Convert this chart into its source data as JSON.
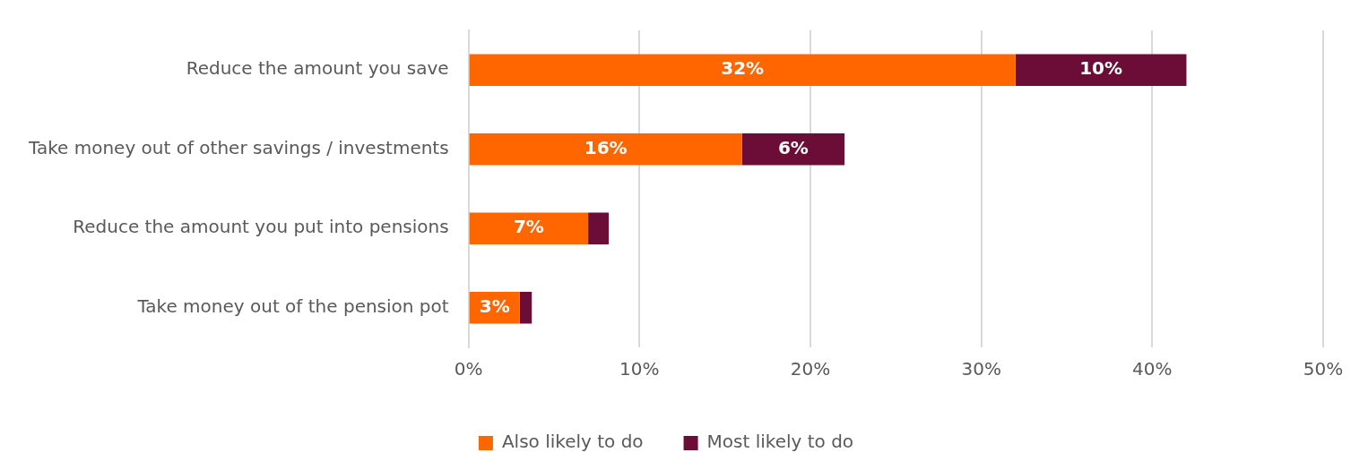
{
  "chart_data": {
    "type": "bar",
    "orientation": "horizontal",
    "stacked": true,
    "categories": [
      "Reduce the amount you save",
      "Take money out of other savings / investments",
      "Reduce the amount you put into pensions",
      "Take money out of the pension pot"
    ],
    "series": [
      {
        "name": "Also likely to do",
        "color": "#ff6600",
        "values": [
          32,
          16,
          7,
          3
        ],
        "value_labels": [
          "32%",
          "16%",
          "7%",
          "3%"
        ]
      },
      {
        "name": "Most likely to do",
        "color": "#6b0d37",
        "values": [
          10,
          6,
          1.2,
          0.7
        ],
        "value_labels": [
          "10%",
          "6%",
          null,
          null
        ]
      }
    ],
    "xlim": [
      0,
      50
    ],
    "xticks": [
      {
        "value": 0,
        "label": "0%"
      },
      {
        "value": 10,
        "label": "10%"
      },
      {
        "value": 20,
        "label": "20%"
      },
      {
        "value": 30,
        "label": "30%"
      },
      {
        "value": 40,
        "label": "40%"
      },
      {
        "value": 50,
        "label": "50%"
      }
    ],
    "grid": "x",
    "legend": "bottom"
  }
}
